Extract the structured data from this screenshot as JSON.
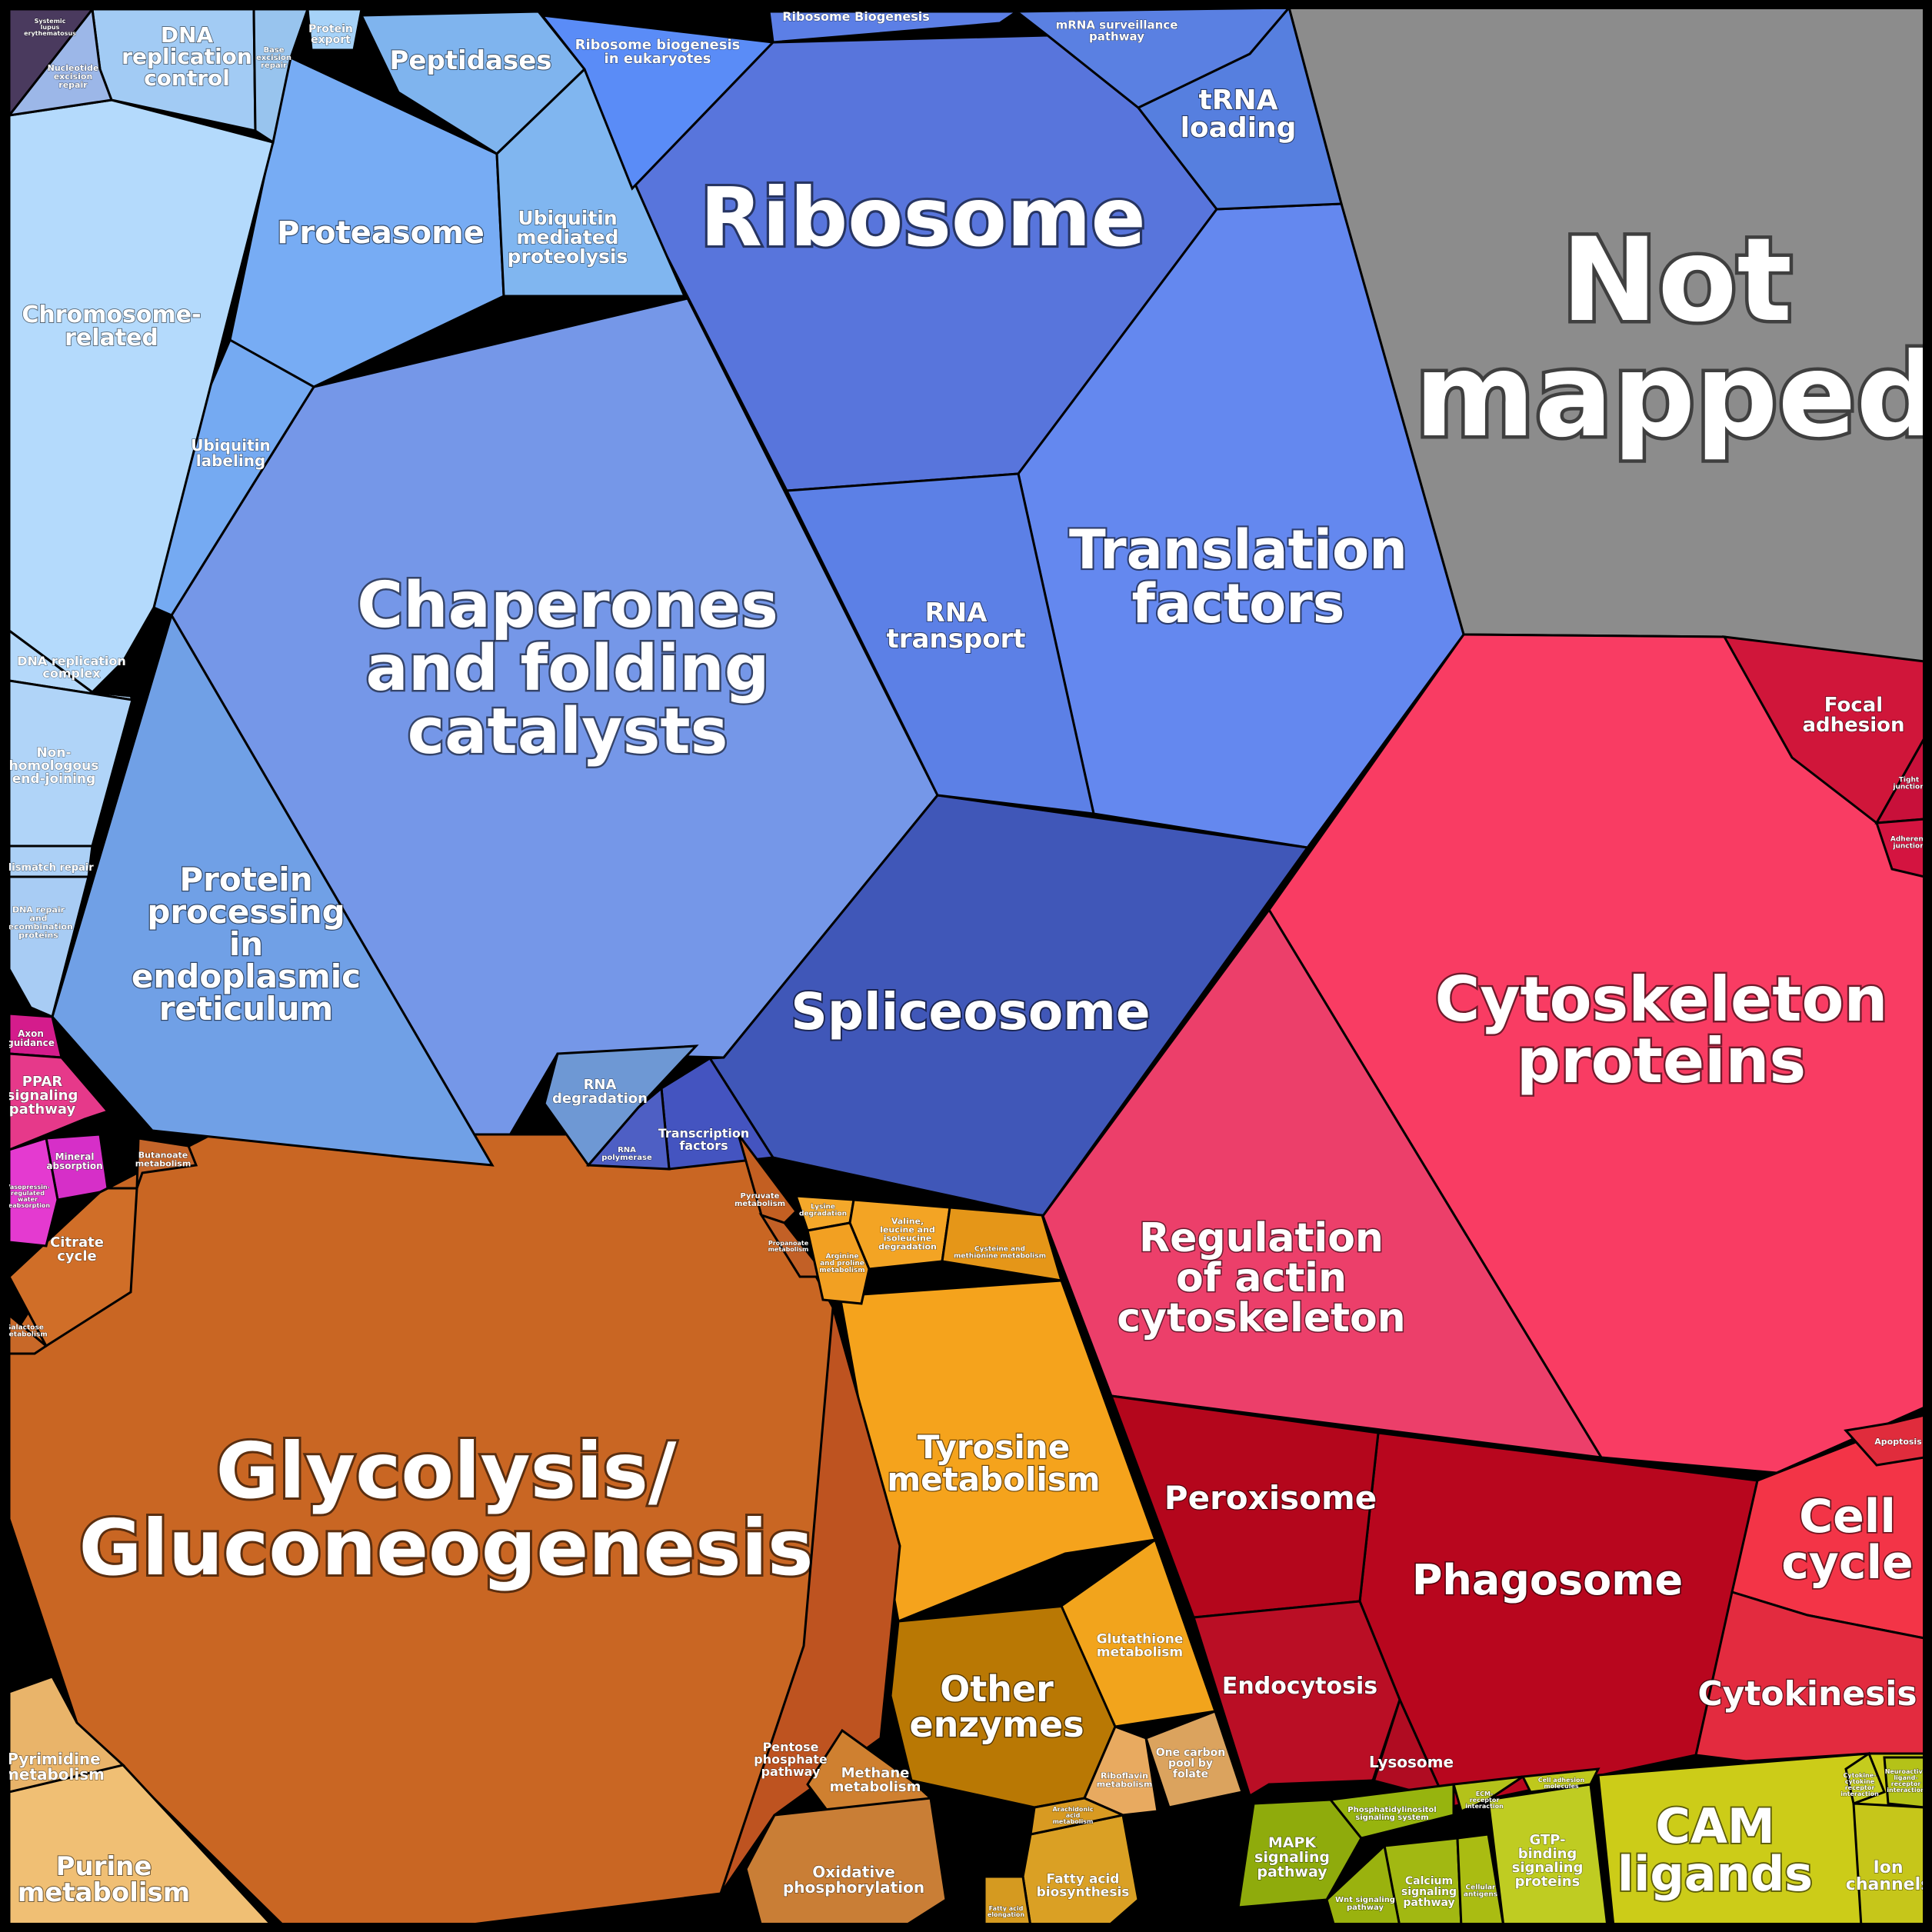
{
  "chart_data": {
    "type": "voronoi-treemap",
    "title": "",
    "regions": [
      {
        "name": "Not mapped",
        "color": "#8c8c8c"
      },
      {
        "name": "Ribosome",
        "color": "#5875dc"
      },
      {
        "name": "Chaperones and folding catalysts",
        "color": "#7597e8"
      },
      {
        "name": "Glycolysis/ Gluconeogenesis",
        "color": "#c96623"
      },
      {
        "name": "Cytoskeleton proteins",
        "color": "#f93c63"
      },
      {
        "name": "Translation factors",
        "color": "#6488ef"
      },
      {
        "name": "Spliceosome",
        "color": "#4057b8"
      },
      {
        "name": "Regulation of actin cytoskeleton",
        "color": "#ec3f6a"
      },
      {
        "name": "Phagosome",
        "color": "#b8061e"
      },
      {
        "name": "Peroxisome",
        "color": "#b4061c"
      },
      {
        "name": "CAM ligands",
        "color": "#cccc18"
      },
      {
        "name": "Tyrosine metabolism",
        "color": "#f5a31c"
      },
      {
        "name": "Other enzymes",
        "color": "#b97804"
      },
      {
        "name": "Cell cycle",
        "color": "#f33447"
      },
      {
        "name": "Cytokinesis",
        "color": "#e32b3f"
      },
      {
        "name": "Endocytosis",
        "color": "#ba0e25"
      },
      {
        "name": "Lysosome",
        "color": "#b00c22"
      },
      {
        "name": "Protein processing in endoplasmic reticulum",
        "color": "#70a0e6"
      },
      {
        "name": "Proteasome",
        "color": "#77acf4"
      },
      {
        "name": "Peptidases",
        "color": "#7fb4ee"
      },
      {
        "name": "Ubiquitin mediated proteolysis",
        "color": "#80b6f0"
      },
      {
        "name": "Ubiquitin labeling",
        "color": "#75aaf2"
      },
      {
        "name": "RNA transport",
        "color": "#5c80e6"
      },
      {
        "name": "tRNA loading",
        "color": "#567fdf"
      },
      {
        "name": "Ribosome biogenesis in eukaryotes",
        "color": "#5a8cf7"
      },
      {
        "name": "Ribosome Biogenesis",
        "color": "#5c7fe6"
      },
      {
        "name": "mRNA surveillance pathway",
        "color": "#5a80e2"
      },
      {
        "name": "Chromosome-related",
        "color": "#b4dafc"
      },
      {
        "name": "DNA replication control",
        "color": "#a2cbf4"
      },
      {
        "name": "Protein export",
        "color": "#a6d2f8"
      },
      {
        "name": "Base excision repair",
        "color": "#98c4ee"
      },
      {
        "name": "Nucleotide excision repair",
        "color": "#9cb7e8"
      },
      {
        "name": "Systemic lupus erythematosus",
        "color": "#4a3a5e"
      },
      {
        "name": "DNA replication complex",
        "color": "#b4d8fa"
      },
      {
        "name": "Non-homologous end-joining",
        "color": "#b0d4f8"
      },
      {
        "name": "Mismatch repair",
        "color": "#acd0f6"
      },
      {
        "name": "DNA repair and recombination proteins",
        "color": "#a8ccf4"
      },
      {
        "name": "RNA degradation",
        "color": "#6e98d4"
      },
      {
        "name": "Transcription factors",
        "color": "#4454c0"
      },
      {
        "name": "RNA polymerase",
        "color": "#4e5fc4"
      },
      {
        "name": "Focal adhesion",
        "color": "#d0163a"
      },
      {
        "name": "Tight junction",
        "color": "#c8103a"
      },
      {
        "name": "Adherens junction",
        "color": "#d41440"
      },
      {
        "name": "Apoptosis",
        "color": "#e02c3c"
      },
      {
        "name": "Purine metabolism",
        "color": "#f0bf74"
      },
      {
        "name": "Pyrimidine metabolism",
        "color": "#e9b46a"
      },
      {
        "name": "Citrate cycle",
        "color": "#d06e28"
      },
      {
        "name": "Butanoate metabolism",
        "color": "#c4652a"
      },
      {
        "name": "Pyruvate metabolism",
        "color": "#c35f22"
      },
      {
        "name": "Propanoate metabolism",
        "color": "#c26026"
      },
      {
        "name": "Galactose metabolism",
        "color": "#c86828"
      },
      {
        "name": "Pentose phosphate pathway",
        "color": "#be5320"
      },
      {
        "name": "Methane metabolism",
        "color": "#cf8030"
      },
      {
        "name": "Oxidative phosphorylation",
        "color": "#c97e36"
      },
      {
        "name": "Fatty acid biosynthesis",
        "color": "#daa024"
      },
      {
        "name": "Fatty acid elongation",
        "color": "#d59a20"
      },
      {
        "name": "Glutathione metabolism",
        "color": "#f2a41c"
      },
      {
        "name": "Riboflavin metabolism",
        "color": "#e8aa60"
      },
      {
        "name": "One carbon pool by folate",
        "color": "#dba35e"
      },
      {
        "name": "Arachidonic acid metabolism",
        "color": "#d89a22"
      },
      {
        "name": "Lysine degradation",
        "color": "#f4a82a"
      },
      {
        "name": "Valine, leucine and isoleucine degradation",
        "color": "#f3a424"
      },
      {
        "name": "Arginine and proline metabolism",
        "color": "#f2a022"
      },
      {
        "name": "Cysteine and methionine metabolism",
        "color": "#e59618"
      },
      {
        "name": "MAPK signaling pathway",
        "color": "#8fab0c"
      },
      {
        "name": "Phosphatidylinositol signaling system",
        "color": "#97b40e"
      },
      {
        "name": "Calcium signaling pathway",
        "color": "#a2b812"
      },
      {
        "name": "Wnt signaling pathway",
        "color": "#9ab20e"
      },
      {
        "name": "GTP-binding signaling proteins",
        "color": "#bfcc22"
      },
      {
        "name": "ECM-receptor interaction",
        "color": "#b4c21a"
      },
      {
        "name": "Cell adhesion molecules",
        "color": "#bfc81c"
      },
      {
        "name": "Cellular antigens",
        "color": "#aabc12"
      },
      {
        "name": "Cytokine-cytokine receptor interaction",
        "color": "#c4cc1e"
      },
      {
        "name": "Neuroactive ligand-receptor interaction",
        "color": "#b4c218"
      },
      {
        "name": "Ion channels",
        "color": "#c6c61a"
      },
      {
        "name": "Axon guidance",
        "color": "#d41c8c"
      },
      {
        "name": "PPAR signaling pathway",
        "color": "#e6398a"
      },
      {
        "name": "Mineral absorption",
        "color": "#d62fc8"
      },
      {
        "name": "Vasopressin-regulated water reabsorption",
        "color": "#e43ad0"
      }
    ]
  }
}
